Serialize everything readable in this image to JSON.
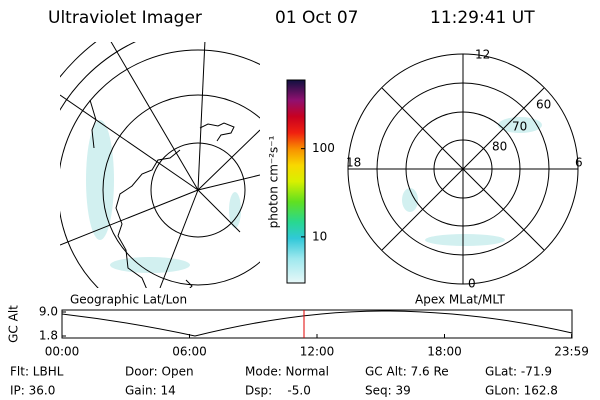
{
  "header": {
    "title": "Ultraviolet Imager",
    "date": "01 Oct 07",
    "time": "11:29:41 UT"
  },
  "colorbar": {
    "label": "photon cm⁻²s⁻¹",
    "log": true,
    "ylim": [
      3,
      600
    ],
    "yticks": [
      10,
      100
    ]
  },
  "left_panel": {
    "label": "Geographic Lat/Lon"
  },
  "right_panel": {
    "label": "Apex MLat/MLT",
    "mlt_labels": {
      "top": "12",
      "left": "18",
      "right": "6",
      "bottom": "0"
    },
    "lat_labels": [
      "60",
      "70",
      "80"
    ]
  },
  "altitude_plot": {
    "ylabel": "GC Alt",
    "ylim": [
      1.2,
      9.6
    ],
    "yticks": [
      {
        "value": 9.0,
        "label": "9.0"
      },
      1.8
    ],
    "xlim": [
      0,
      24
    ],
    "xticks": [
      {
        "value": 0,
        "label": "00:00"
      },
      {
        "value": 6,
        "label": "06:00"
      },
      {
        "value": 12,
        "label": "12:00"
      },
      {
        "value": 18,
        "label": "18:00"
      },
      {
        "value": 23.98,
        "label": "23:59"
      }
    ]
  },
  "footer": {
    "rows": [
      [
        "Flt: LBHL",
        "Door: Open",
        "Mode: Normal",
        "GC Alt: 7.6 Re",
        "GLat: -71.9"
      ],
      [
        "IP: 36.0",
        "Gain: 14",
        "Dsp:    -5.0",
        "Seq: 39",
        "GLon: 162.8"
      ]
    ]
  }
}
